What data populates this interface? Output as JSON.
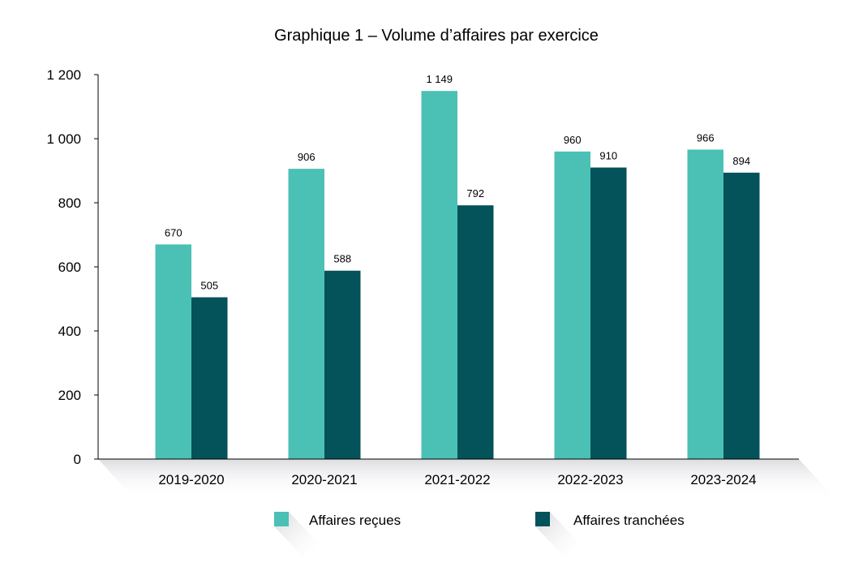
{
  "chart_data": {
    "type": "bar",
    "title": "Graphique 1 – Volume d’affaires par exercice",
    "xlabel": "",
    "ylabel": "",
    "categories": [
      "2019-2020",
      "2020-2021",
      "2021-2022",
      "2022-2023",
      "2023-2024"
    ],
    "series": [
      {
        "name": "Affaires reçues",
        "color": "#4BC0B5",
        "values": [
          670,
          906,
          1149,
          960,
          966
        ],
        "labels": [
          "670",
          "906",
          "1 149",
          "960",
          "966"
        ]
      },
      {
        "name": "Affaires tranchées",
        "color": "#04525A",
        "values": [
          505,
          588,
          792,
          910,
          894
        ],
        "labels": [
          "505",
          "588",
          "792",
          "910",
          "894"
        ]
      }
    ],
    "ylim": [
      0,
      1200
    ],
    "yticks": [
      0,
      200,
      400,
      600,
      800,
      1000,
      1200
    ],
    "ytick_labels": [
      "0",
      "200",
      "400",
      "600",
      "800",
      "1 000",
      "1 200"
    ],
    "grid": false,
    "legend": "bottom"
  }
}
